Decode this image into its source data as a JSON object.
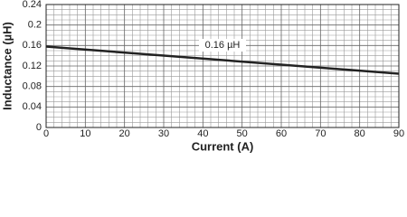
{
  "chart_data": {
    "type": "line",
    "x_label": "Current (A)",
    "y_label": "Inductance (µH)",
    "annotation": "0.16 µH",
    "x": [
      0,
      90
    ],
    "series": [
      {
        "name": "0.16 µH",
        "color": "#222222",
        "values": [
          0.158,
          0.105
        ]
      }
    ],
    "xlim": [
      0,
      90
    ],
    "xticks": [
      0,
      10,
      20,
      30,
      40,
      50,
      60,
      70,
      80,
      90
    ],
    "ylim": [
      0,
      0.24
    ],
    "yticks": [
      0,
      0.04,
      0.08,
      0.12,
      0.16,
      0.2,
      0.24
    ],
    "grid": true
  }
}
